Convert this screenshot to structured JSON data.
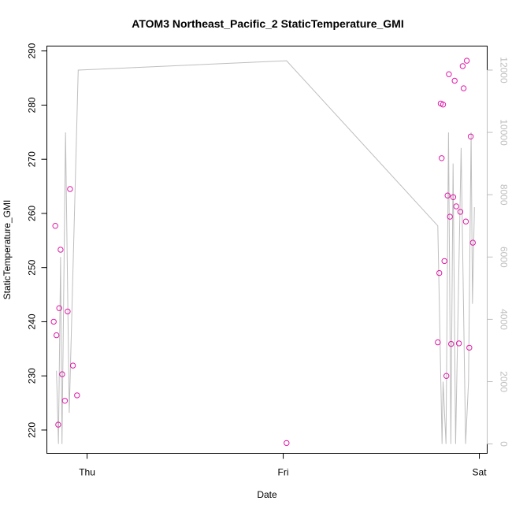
{
  "chart_data": {
    "type": "scatter",
    "title": "ATOM3 Northeast_Pacific_2 StaticTemperature_GMI",
    "xlabel": "Date",
    "ylabel": "StaticTemperature_GMI",
    "x_ticks": [
      {
        "label": "Thu",
        "day": 0
      },
      {
        "label": "Fri",
        "day": 1
      },
      {
        "label": "Sat",
        "day": 2
      }
    ],
    "xlim": [
      -0.205,
      2.04
    ],
    "ylim": [
      215.7,
      290.9
    ],
    "y_ticks": [
      220,
      230,
      240,
      250,
      260,
      270,
      280,
      290
    ],
    "y2_ticks": [
      0,
      2000,
      4000,
      6000,
      8000,
      10000,
      12000
    ],
    "y2lim": [
      -300,
      12770
    ],
    "colors": {
      "points": "#e01aa8",
      "altitude_line": "#bebebe",
      "axis": "#000000",
      "right_axis": "#bebebe"
    },
    "series": [
      {
        "marker": "circle",
        "points": [
          [
            -0.17,
            240.0
          ],
          [
            -0.162,
            257.7
          ],
          [
            -0.156,
            237.5
          ],
          [
            -0.147,
            221.0
          ],
          [
            -0.142,
            242.5
          ],
          [
            -0.135,
            253.3
          ],
          [
            -0.127,
            230.3
          ],
          [
            -0.113,
            225.4
          ],
          [
            -0.099,
            241.9
          ],
          [
            -0.087,
            264.5
          ],
          [
            -0.072,
            231.9
          ],
          [
            -0.051,
            226.4
          ],
          [
            1.017,
            217.6
          ],
          [
            1.788,
            236.2
          ],
          [
            1.796,
            249.0
          ],
          [
            1.803,
            280.3
          ],
          [
            1.808,
            270.2
          ],
          [
            1.815,
            280.1
          ],
          [
            1.822,
            251.2
          ],
          [
            1.832,
            230.0
          ],
          [
            1.838,
            263.3
          ],
          [
            1.845,
            285.7
          ],
          [
            1.85,
            259.4
          ],
          [
            1.856,
            235.9
          ],
          [
            1.867,
            263.0
          ],
          [
            1.874,
            284.5
          ],
          [
            1.882,
            261.3
          ],
          [
            1.896,
            236.0
          ],
          [
            1.903,
            260.3
          ],
          [
            1.915,
            287.2
          ],
          [
            1.92,
            283.1
          ],
          [
            1.931,
            258.5
          ],
          [
            1.936,
            288.2
          ],
          [
            1.949,
            235.2
          ],
          [
            1.956,
            274.2
          ],
          [
            1.967,
            254.6
          ]
        ]
      },
      {
        "axis": "right",
        "line": [
          [
            -0.156,
            2350
          ],
          [
            -0.146,
            0
          ],
          [
            -0.135,
            6000
          ],
          [
            -0.128,
            0
          ],
          [
            -0.11,
            10000
          ],
          [
            -0.091,
            1000
          ],
          [
            -0.045,
            12000
          ],
          [
            1.017,
            12300
          ],
          [
            1.788,
            7000
          ],
          [
            1.81,
            0
          ],
          [
            1.815,
            2000
          ],
          [
            1.83,
            0
          ],
          [
            1.843,
            10000
          ],
          [
            1.855,
            0
          ],
          [
            1.866,
            9000
          ],
          [
            1.879,
            0
          ],
          [
            1.907,
            9500
          ],
          [
            1.93,
            0
          ],
          [
            1.945,
            2000
          ],
          [
            1.958,
            10000
          ],
          [
            1.965,
            4500
          ],
          [
            1.975,
            7600
          ]
        ]
      }
    ]
  }
}
